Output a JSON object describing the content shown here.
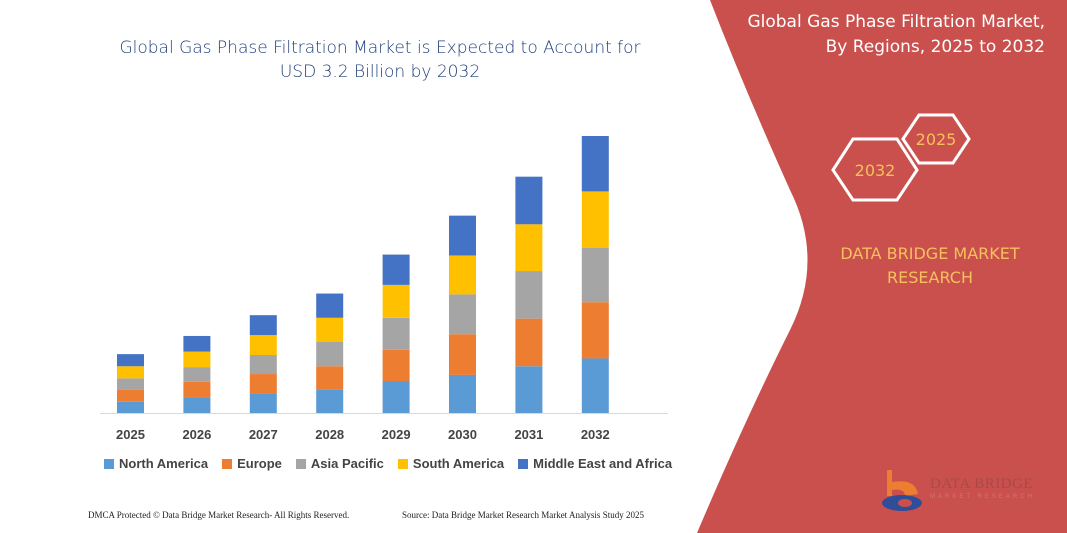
{
  "header": {
    "title_line1": "Global Gas Phase Filtration Market is Expected to Account for",
    "title_line2": "USD 3.2 Billion by 2032"
  },
  "side_panel": {
    "title_line1": "Global Gas Phase Filtration Market,",
    "title_line2": "By Regions, 2025 to 2032",
    "hex_left": "2032",
    "hex_right": "2025",
    "brand_line1": "DATA BRIDGE MARKET",
    "brand_line2": "RESEARCH",
    "logo_text": "DATA BRIDGE",
    "logo_sub": "MARKET RESEARCH",
    "panel_color": "#c9504d",
    "accent_color": "#f6c05c"
  },
  "footer": {
    "left": "DMCA Protected © Data Bridge Market Research- All Rights Reserved.",
    "right": "Source: Data Bridge Market Research Market Analysis Study 2025"
  },
  "chart_data": {
    "type": "bar",
    "stacked": true,
    "title": "Global Gas Phase Filtration Market is Expected to Account for USD 3.2 Billion by 2032",
    "unit": "USD Billion",
    "categories": [
      "2025",
      "2026",
      "2027",
      "2028",
      "2029",
      "2030",
      "2031",
      "2032"
    ],
    "series": [
      {
        "name": "North America",
        "color": "#5b9bd5",
        "values": [
          0.13,
          0.18,
          0.22,
          0.27,
          0.37,
          0.44,
          0.54,
          0.63
        ]
      },
      {
        "name": "Europe",
        "color": "#ed7d31",
        "values": [
          0.14,
          0.18,
          0.23,
          0.27,
          0.36,
          0.47,
          0.55,
          0.65
        ]
      },
      {
        "name": "Asia Pacific",
        "color": "#a5a5a5",
        "values": [
          0.13,
          0.17,
          0.22,
          0.28,
          0.37,
          0.46,
          0.55,
          0.63
        ]
      },
      {
        "name": "South America",
        "color": "#ffc000",
        "values": [
          0.14,
          0.18,
          0.23,
          0.28,
          0.38,
          0.45,
          0.54,
          0.65
        ]
      },
      {
        "name": "Middle East and Africa",
        "color": "#4472c4",
        "values": [
          0.14,
          0.18,
          0.23,
          0.28,
          0.35,
          0.46,
          0.55,
          0.64
        ]
      }
    ],
    "ylim": [
      0,
      3.2
    ],
    "y_axis_visible": false,
    "grid": false,
    "legend_position": "bottom"
  }
}
